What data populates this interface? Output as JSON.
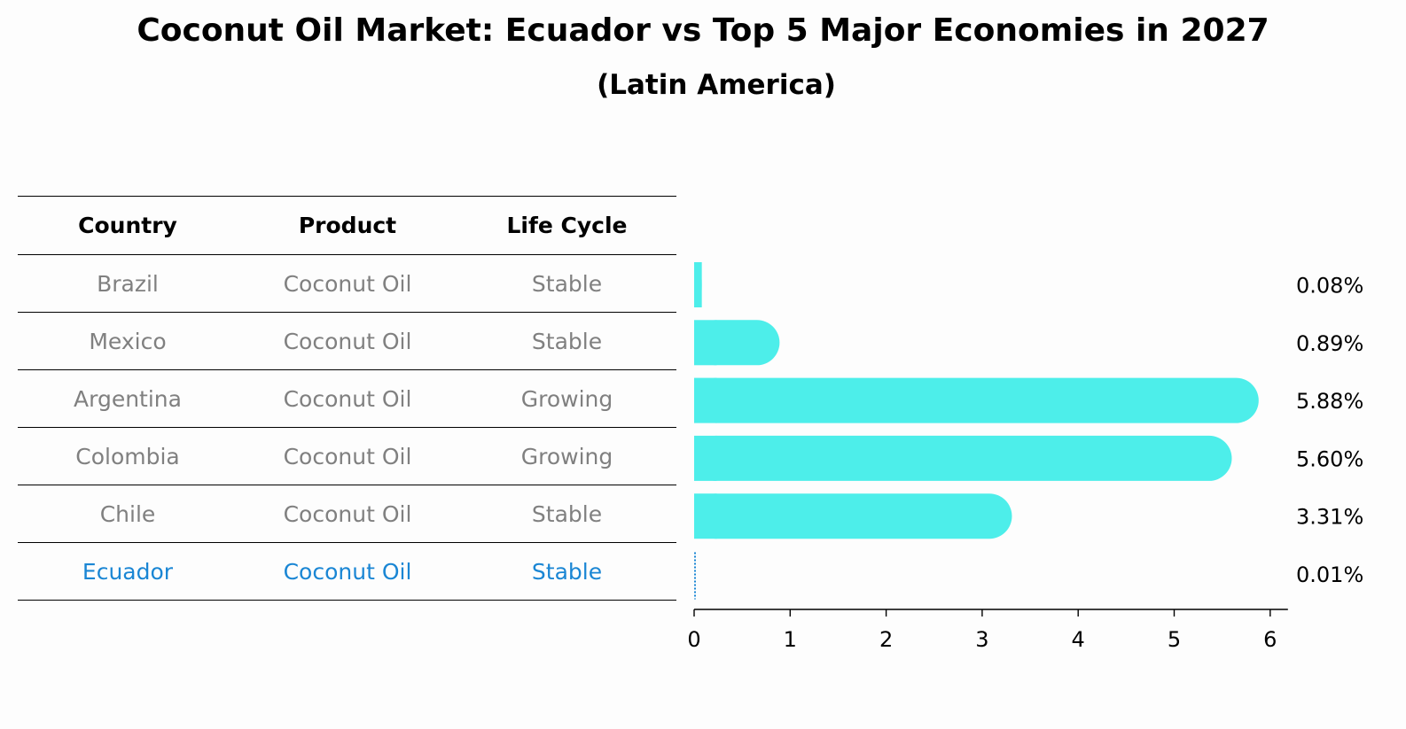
{
  "title": "Coconut Oil Market: Ecuador vs Top 5 Major Economies in 2027",
  "subtitle": "(Latin America)",
  "table": {
    "headers": [
      "Country",
      "Product",
      "Life Cycle"
    ],
    "rows": [
      [
        "Brazil",
        "Coconut Oil",
        "Stable"
      ],
      [
        "Mexico",
        "Coconut Oil",
        "Stable"
      ],
      [
        "Argentina",
        "Coconut Oil",
        "Growing"
      ],
      [
        "Colombia",
        "Coconut Oil",
        "Growing"
      ],
      [
        "Chile",
        "Coconut Oil",
        "Stable"
      ],
      [
        "Ecuador",
        "Coconut Oil",
        "Stable"
      ]
    ],
    "highlight_row": "Ecuador",
    "highlight_color": "#1a86d4",
    "text_color": "#808080"
  },
  "chart_data": {
    "type": "bar",
    "orientation": "horizontal",
    "categories": [
      "Brazil",
      "Mexico",
      "Argentina",
      "Colombia",
      "Chile",
      "Ecuador"
    ],
    "values": [
      0.08,
      0.89,
      5.88,
      5.6,
      3.31,
      0.01
    ],
    "value_labels": [
      "0.08%",
      "0.89%",
      "5.88%",
      "5.60%",
      "3.31%",
      "0.01%"
    ],
    "xlim": [
      0,
      6
    ],
    "xticks": [
      0,
      1,
      2,
      3,
      4,
      5,
      6
    ],
    "bar_color": "#4deeea",
    "highlight_color": "#1a86d4",
    "highlight_category": "Ecuador",
    "grid": false
  }
}
